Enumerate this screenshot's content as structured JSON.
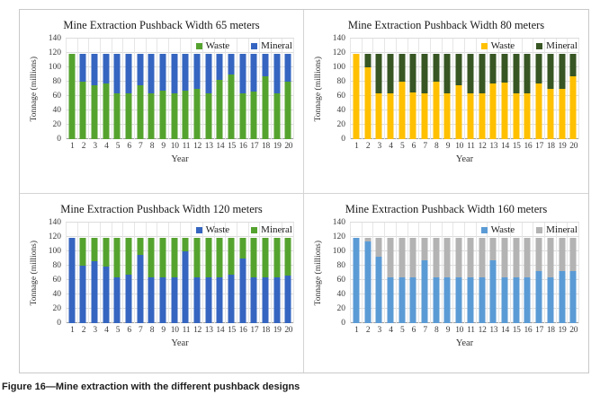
{
  "caption": "Figure 16—Mine extraction with the different pushback designs",
  "chart_data": [
    {
      "type": "bar",
      "stacked": true,
      "title": "Mine Extraction Pushback Width 65 meters",
      "xlabel": "Year",
      "ylabel": "Tonnage (millions)",
      "ylim": [
        0,
        140
      ],
      "ytick_step": 20,
      "grid": "horizontal+vertical",
      "legend_position": "top-right-inside",
      "categories": [
        "1",
        "2",
        "3",
        "4",
        "5",
        "6",
        "7",
        "8",
        "9",
        "10",
        "11",
        "12",
        "13",
        "14",
        "15",
        "16",
        "17",
        "18",
        "19",
        "20"
      ],
      "series": [
        {
          "name": "Waste",
          "color": "#55A32F",
          "values": [
            119,
            80,
            75,
            78,
            64,
            64,
            75,
            64,
            67,
            64,
            67,
            70,
            64,
            82,
            90,
            64,
            66,
            88,
            64,
            80
          ]
        },
        {
          "name": "Mineral",
          "color": "#3565C0",
          "values": [
            0,
            39,
            44,
            41,
            55,
            55,
            44,
            55,
            52,
            55,
            52,
            49,
            55,
            37,
            29,
            55,
            53,
            31,
            55,
            39
          ]
        }
      ]
    },
    {
      "type": "bar",
      "stacked": true,
      "title": "Mine Extraction Pushback Width 80 meters",
      "xlabel": "Year",
      "ylabel": "Tonnage (millions)",
      "ylim": [
        0,
        140
      ],
      "ytick_step": 20,
      "grid": "horizontal+vertical",
      "legend_position": "top-right-inside",
      "categories": [
        "1",
        "2",
        "3",
        "4",
        "5",
        "6",
        "7",
        "8",
        "9",
        "10",
        "11",
        "12",
        "13",
        "14",
        "15",
        "16",
        "17",
        "18",
        "19",
        "20"
      ],
      "series": [
        {
          "name": "Waste",
          "color": "#FFC000",
          "values": [
            119,
            100,
            64,
            64,
            80,
            65,
            64,
            80,
            64,
            75,
            64,
            64,
            77,
            79,
            64,
            64,
            77,
            70,
            70,
            87
          ]
        },
        {
          "name": "Mineral",
          "color": "#375623",
          "values": [
            0,
            19,
            55,
            55,
            39,
            54,
            55,
            39,
            55,
            44,
            55,
            55,
            42,
            40,
            55,
            55,
            42,
            49,
            49,
            32
          ]
        }
      ]
    },
    {
      "type": "bar",
      "stacked": true,
      "title": "Mine Extraction Pushback Width 120 meters",
      "xlabel": "Year",
      "ylabel": "Tonnage (millions)",
      "ylim": [
        0,
        140
      ],
      "ytick_step": 20,
      "grid": "horizontal+vertical",
      "legend_position": "top-right-inside",
      "categories": [
        "1",
        "2",
        "3",
        "4",
        "5",
        "6",
        "7",
        "8",
        "9",
        "10",
        "11",
        "12",
        "13",
        "14",
        "15",
        "16",
        "17",
        "18",
        "19",
        "20"
      ],
      "series": [
        {
          "name": "Waste",
          "color": "#3565C0",
          "values": [
            119,
            80,
            86,
            79,
            64,
            68,
            95,
            64,
            64,
            64,
            100,
            64,
            64,
            64,
            67,
            90,
            64,
            64,
            64,
            66
          ]
        },
        {
          "name": "Mineral",
          "color": "#55A32F",
          "values": [
            0,
            39,
            33,
            40,
            55,
            51,
            24,
            55,
            55,
            55,
            19,
            55,
            55,
            55,
            52,
            29,
            55,
            55,
            55,
            53
          ]
        }
      ]
    },
    {
      "type": "bar",
      "stacked": true,
      "title": "Mine Extraction Pushback Width 160 meters",
      "xlabel": "Year",
      "ylabel": "Tonnage (millions)",
      "ylim": [
        0,
        140
      ],
      "ytick_step": 20,
      "grid": "horizontal+vertical",
      "legend_position": "top-right-inside",
      "categories": [
        "1",
        "2",
        "3",
        "4",
        "5",
        "6",
        "7",
        "8",
        "9",
        "10",
        "11",
        "12",
        "13",
        "14",
        "15",
        "16",
        "17",
        "18",
        "19",
        "20"
      ],
      "series": [
        {
          "name": "Waste",
          "color": "#5B9BD5",
          "values": [
            119,
            114,
            93,
            64,
            64,
            64,
            87,
            64,
            64,
            64,
            64,
            64,
            88,
            64,
            64,
            64,
            73,
            64,
            73,
            73
          ]
        },
        {
          "name": "Mineral",
          "color": "#B3B3B3",
          "values": [
            0,
            5,
            26,
            55,
            55,
            55,
            32,
            55,
            55,
            55,
            55,
            55,
            31,
            55,
            55,
            55,
            46,
            55,
            46,
            46
          ]
        }
      ]
    }
  ]
}
